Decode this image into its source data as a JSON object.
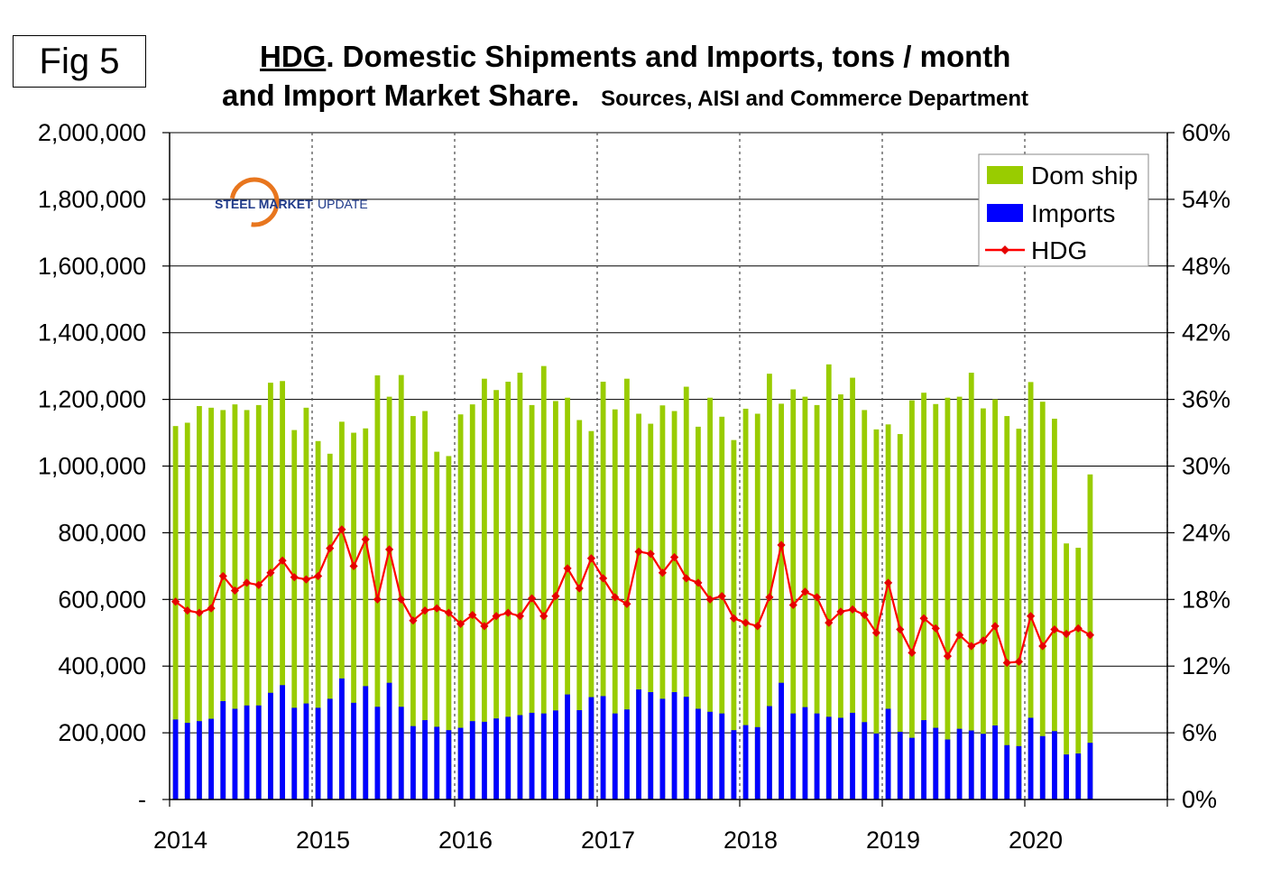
{
  "fig_label": "Fig 5",
  "title_underlined": "HDG",
  "title_rest": ". Domestic Shipments and Imports, tons / month",
  "title_line2": "and Import Market Share.",
  "sources": "Sources, AISI and Commerce Department",
  "logo": {
    "text1": "STEEL MARKET",
    "text2": "UPDATE",
    "colors": [
      "#1f3a8a",
      "#e8761e",
      "#d0312d"
    ]
  },
  "colors": {
    "dom_ship": "#99cc00",
    "imports": "#0000ff",
    "hdg": "#ff0000",
    "hdg_marker": "#e60000"
  },
  "chart_data": {
    "type": "bar",
    "x": [
      "2014-01",
      "2014-02",
      "2014-03",
      "2014-04",
      "2014-05",
      "2014-06",
      "2014-07",
      "2014-08",
      "2014-09",
      "2014-10",
      "2014-11",
      "2014-12",
      "2015-01",
      "2015-02",
      "2015-03",
      "2015-04",
      "2015-05",
      "2015-06",
      "2015-07",
      "2015-08",
      "2015-09",
      "2015-10",
      "2015-11",
      "2015-12",
      "2016-01",
      "2016-02",
      "2016-03",
      "2016-04",
      "2016-05",
      "2016-06",
      "2016-07",
      "2016-08",
      "2016-09",
      "2016-10",
      "2016-11",
      "2016-12",
      "2017-01",
      "2017-02",
      "2017-03",
      "2017-04",
      "2017-05",
      "2017-06",
      "2017-07",
      "2017-08",
      "2017-09",
      "2017-10",
      "2017-11",
      "2017-12",
      "2018-01",
      "2018-02",
      "2018-03",
      "2018-04",
      "2018-05",
      "2018-06",
      "2018-07",
      "2018-08",
      "2018-09",
      "2018-10",
      "2018-11",
      "2018-12",
      "2019-01",
      "2019-02",
      "2019-03",
      "2019-04",
      "2019-05",
      "2019-06",
      "2019-07",
      "2019-08",
      "2019-09",
      "2019-10",
      "2019-11",
      "2019-12",
      "2020-01",
      "2020-02",
      "2020-03",
      "2020-04",
      "2020-05",
      "2020-06"
    ],
    "year_labels": [
      "2014",
      "2015",
      "2016",
      "2017",
      "2018",
      "2019",
      "2020"
    ],
    "y_left_ticks": [
      "-",
      "200,000",
      "400,000",
      "600,000",
      "800,000",
      "1,000,000",
      "1,200,000",
      "1,400,000",
      "1,600,000",
      "1,800,000",
      "2,000,000"
    ],
    "y_right_ticks": [
      "0%",
      "6%",
      "12%",
      "18%",
      "24%",
      "30%",
      "36%",
      "42%",
      "48%",
      "54%",
      "60%"
    ],
    "y_left_lim": [
      0,
      2000000
    ],
    "y_right_lim": [
      0,
      60
    ],
    "grid": "horizontal lines; dotted vertical lines at year boundaries",
    "legend_position": "top-right",
    "series": [
      {
        "name": "Dom ship",
        "type": "bar",
        "axis": "left",
        "values": [
          1120000,
          1130000,
          1180000,
          1175000,
          1168000,
          1185000,
          1168000,
          1183000,
          1250000,
          1255000,
          1108000,
          1175000,
          1075000,
          1037000,
          1133000,
          1100000,
          1113000,
          1272000,
          1208000,
          1273000,
          1150000,
          1165000,
          1043000,
          1030000,
          1155000,
          1185000,
          1262000,
          1228000,
          1253000,
          1280000,
          1183000,
          1300000,
          1195000,
          1205000,
          1138000,
          1105000,
          1253000,
          1170000,
          1262000,
          1157000,
          1127000,
          1182000,
          1165000,
          1238000,
          1118000,
          1205000,
          1148000,
          1078000,
          1172000,
          1157000,
          1277000,
          1187000,
          1230000,
          1208000,
          1183000,
          1305000,
          1215000,
          1265000,
          1168000,
          1110000,
          1125000,
          1096000,
          1197000,
          1220000,
          1186000,
          1205000,
          1208000,
          1280000,
          1173000,
          1200000,
          1150000,
          1112000,
          1252000,
          1193000,
          1142000,
          768000,
          755000,
          975000
        ]
      },
      {
        "name": "Imports",
        "type": "bar",
        "axis": "left",
        "values": [
          240000,
          230000,
          235000,
          242000,
          295000,
          272000,
          282000,
          282000,
          320000,
          343000,
          275000,
          288000,
          275000,
          302000,
          363000,
          290000,
          340000,
          278000,
          350000,
          278000,
          220000,
          238000,
          218000,
          208000,
          215000,
          235000,
          233000,
          243000,
          248000,
          253000,
          260000,
          258000,
          267000,
          315000,
          268000,
          307000,
          310000,
          258000,
          270000,
          330000,
          322000,
          302000,
          322000,
          308000,
          272000,
          263000,
          258000,
          208000,
          223000,
          217000,
          280000,
          350000,
          258000,
          277000,
          258000,
          248000,
          245000,
          260000,
          232000,
          198000,
          272000,
          203000,
          185000,
          238000,
          215000,
          180000,
          212000,
          207000,
          197000,
          222000,
          163000,
          160000,
          245000,
          190000,
          205000,
          135000,
          138000,
          170000
        ]
      },
      {
        "name": "HDG",
        "type": "line",
        "axis": "right",
        "unit": "%",
        "values": [
          17.8,
          17.0,
          16.8,
          17.2,
          20.1,
          18.8,
          19.5,
          19.3,
          20.4,
          21.5,
          20.0,
          19.8,
          20.1,
          22.6,
          24.3,
          21.0,
          23.4,
          18.0,
          22.5,
          18.0,
          16.1,
          17.0,
          17.2,
          16.8,
          15.8,
          16.6,
          15.6,
          16.5,
          16.8,
          16.5,
          18.1,
          16.5,
          18.3,
          20.8,
          19.0,
          21.7,
          19.9,
          18.2,
          17.6,
          22.3,
          22.1,
          20.4,
          21.8,
          19.9,
          19.5,
          18.0,
          18.3,
          16.3,
          15.9,
          15.6,
          18.2,
          22.9,
          17.5,
          18.7,
          18.2,
          15.9,
          16.9,
          17.1,
          16.6,
          15.0,
          19.5,
          15.3,
          13.2,
          16.3,
          15.4,
          12.9,
          14.8,
          13.8,
          14.3,
          15.6,
          12.3,
          12.4,
          16.5,
          13.8,
          15.3,
          14.9,
          15.4,
          14.8
        ]
      }
    ]
  }
}
